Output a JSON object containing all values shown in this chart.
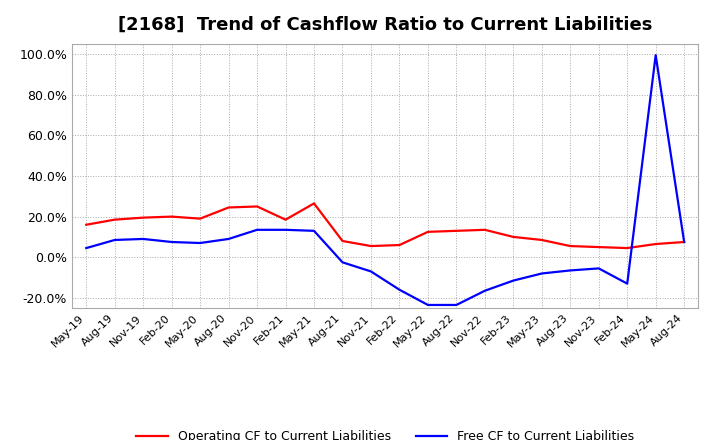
{
  "title": "[2168]  Trend of Cashflow Ratio to Current Liabilities",
  "title_fontsize": 13,
  "background_color": "#ffffff",
  "grid_color": "#aaaaaa",
  "ylim": [
    -0.25,
    1.05
  ],
  "yticks": [
    -0.2,
    0.0,
    0.2,
    0.4,
    0.6,
    0.8,
    1.0
  ],
  "ytick_labels": [
    "-20.0%",
    "0.0%",
    "20.0%",
    "40.0%",
    "60.0%",
    "80.0%",
    "100.0%"
  ],
  "x_labels": [
    "May-19",
    "Aug-19",
    "Nov-19",
    "Feb-20",
    "May-20",
    "Aug-20",
    "Nov-20",
    "Feb-21",
    "May-21",
    "Aug-21",
    "Nov-21",
    "Feb-22",
    "May-22",
    "Aug-22",
    "Nov-22",
    "Feb-23",
    "May-23",
    "Aug-23",
    "Nov-23",
    "Feb-24",
    "May-24",
    "Aug-24"
  ],
  "operating_cf": [
    0.16,
    0.185,
    0.195,
    0.2,
    0.19,
    0.245,
    0.25,
    0.185,
    0.265,
    0.08,
    0.055,
    0.06,
    0.125,
    0.13,
    0.135,
    0.1,
    0.085,
    0.055,
    0.05,
    0.045,
    0.065,
    0.075
  ],
  "free_cf": [
    0.045,
    0.085,
    0.09,
    0.075,
    0.07,
    0.09,
    0.135,
    0.135,
    0.13,
    -0.025,
    -0.07,
    -0.16,
    -0.235,
    -0.235,
    -0.165,
    -0.115,
    -0.08,
    -0.065,
    -0.055,
    -0.13,
    0.995,
    0.075
  ],
  "op_color": "#ff0000",
  "free_color": "#0000ff",
  "op_label": "Operating CF to Current Liabilities",
  "free_label": "Free CF to Current Liabilities",
  "line_width": 1.6
}
